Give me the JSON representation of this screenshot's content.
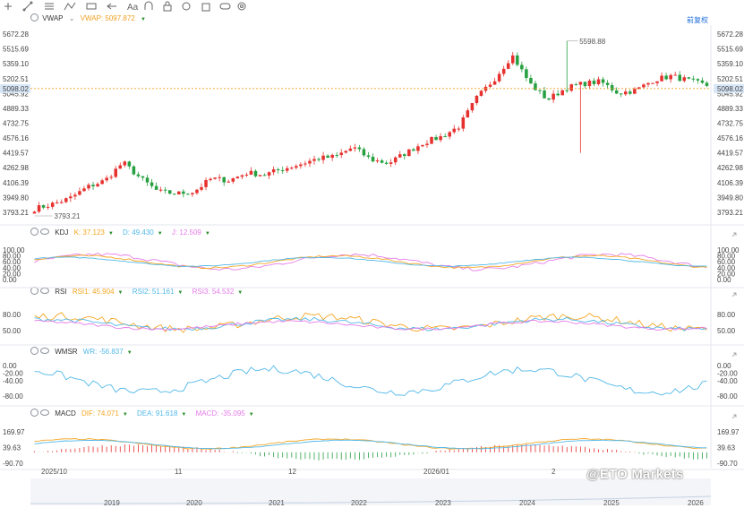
{
  "toolbar": {
    "icons": [
      "crosshair-icon",
      "trend-line-icon",
      "fib-icon",
      "pattern-icon",
      "ruler-icon",
      "arrow-icon",
      "text-icon",
      "magnet-icon",
      "lock-icon",
      "hide-icon",
      "delete-icon",
      "compare-icon",
      "settings-icon"
    ],
    "restore_label": "前复权"
  },
  "main": {
    "indicator": "VWAP",
    "value_label": "VWAP: 5097.872",
    "price_label": "5098.02",
    "high_label": "5598.88",
    "low_label": "3793.21",
    "ticks": [
      "5672.28",
      "5515.69",
      "5359.10",
      "5202.51",
      "5045.92",
      "4889.33",
      "4732.75",
      "4576.16",
      "4419.57",
      "4262.98",
      "4106.39",
      "3949.80",
      "3793.21"
    ]
  },
  "kdj": {
    "name": "KDJ",
    "k_label": "K: 37.123",
    "d_label": "D: 49.430",
    "j_label": "J: 12.509",
    "ticks": [
      "100.00",
      "80.00",
      "60.00",
      "40.00",
      "20.00",
      "0.00"
    ]
  },
  "rsi": {
    "name": "RSI",
    "r1_label": "RSI1: 45.904",
    "r2_label": "RSI2: 51.161",
    "r3_label": "RSI3: 54.532",
    "ticks": [
      "80.00",
      "50.00"
    ]
  },
  "wmsr": {
    "name": "WMSR",
    "wr_label": "WR: -56.837",
    "ticks": [
      "0.00",
      "-20.00",
      "-40.00",
      "-80.00"
    ]
  },
  "macd": {
    "name": "MACD",
    "dif_label": "DIF: 74.071",
    "dea_label": "DEA: 91.618",
    "macd_label": "MACD: -35.095",
    "ticks": [
      "169.97",
      "39.63",
      "-90.70"
    ]
  },
  "xaxis": {
    "labels": [
      "2025/10",
      "11",
      "12",
      "2026/01",
      "2"
    ]
  },
  "navigator": {
    "labels": [
      "2019",
      "2020",
      "2021",
      "2022",
      "2023",
      "2024",
      "2025",
      "2026"
    ]
  },
  "watermark": "@ETO Markets",
  "colors": {
    "up": "#e6312e",
    "down": "#26a041",
    "vwap": "#f0a020",
    "k": "#f5a623",
    "d": "#52b8e8",
    "j": "#e57be8",
    "wr": "#52b8e8",
    "price_line": "#f0a020"
  },
  "chart_data": [
    {
      "type": "candlestick",
      "series": "main",
      "x": [
        "2025/10",
        "11",
        "12",
        "2026/01",
        "2"
      ],
      "anchors": [
        3830,
        3880,
        3940,
        4060,
        4130,
        4320,
        4150,
        4010,
        3990,
        4010,
        4150,
        4130,
        4210,
        4190,
        4250,
        4300,
        4360,
        4380,
        4480,
        4350,
        4310,
        4420,
        4530,
        4590,
        4700,
        5000,
        5200,
        5450,
        5150,
        4980,
        5100,
        5150,
        5170,
        5050,
        5080,
        5190,
        5230,
        5180,
        5130
      ],
      "high_label": 5598.88,
      "low_label": 3793.21,
      "last_price": 5098.02,
      "ylim": [
        3793.21,
        5672.28
      ]
    },
    {
      "type": "line",
      "series": "KDJ",
      "legend": [
        "K",
        "D",
        "J"
      ],
      "latest": {
        "K": 37.123,
        "D": 49.43,
        "J": 12.509
      },
      "ylim": [
        0,
        100
      ]
    },
    {
      "type": "line",
      "series": "RSI",
      "legend": [
        "RSI1",
        "RSI2",
        "RSI3"
      ],
      "latest": {
        "RSI1": 45.904,
        "RSI2": 51.161,
        "RSI3": 54.532
      }
    },
    {
      "type": "line",
      "series": "WMSR",
      "legend": [
        "WR"
      ],
      "latest": {
        "WR": -56.837
      },
      "ylim": [
        -100,
        0
      ]
    },
    {
      "type": "bar",
      "series": "MACD",
      "legend": [
        "DIF",
        "DEA",
        "MACD"
      ],
      "latest": {
        "DIF": 74.071,
        "DEA": 91.618,
        "MACD": -35.095
      },
      "ylim": [
        -90.7,
        169.97
      ]
    }
  ]
}
